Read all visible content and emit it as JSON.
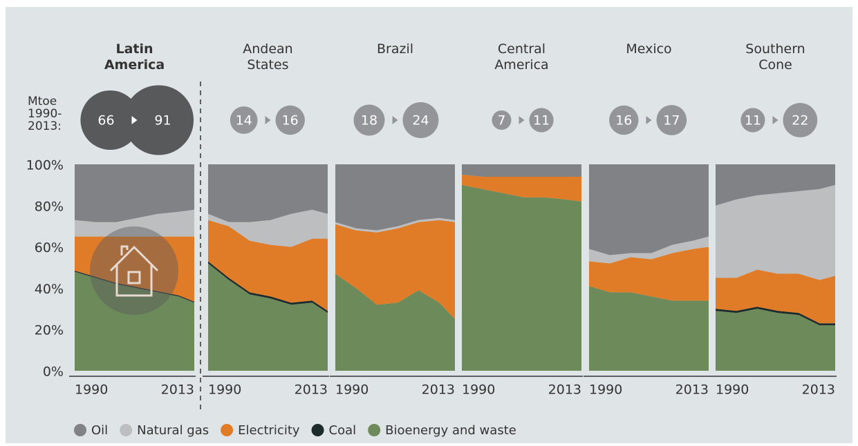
{
  "mtoe_label": "Mtoe 1990-2013:",
  "chart_data": [
    {
      "type": "area",
      "title": "Latin America",
      "mtoe_start": 66,
      "mtoe_end": 91,
      "x": [
        1990,
        1994,
        1998,
        2002,
        2006,
        2010,
        2013
      ],
      "xlim": [
        1990,
        2013
      ],
      "xticks": [
        1990,
        2013
      ],
      "ylim": [
        0,
        100
      ],
      "yticks": [
        {
          "value": 0,
          "label": "0%"
        },
        {
          "value": 20,
          "label": "20%"
        },
        {
          "value": 40,
          "label": "40%"
        },
        {
          "value": 60,
          "label": "60%"
        },
        {
          "value": 80,
          "label": "80%"
        },
        {
          "value": 100,
          "label": "100%"
        }
      ],
      "series": [
        {
          "name": "Bioenergy and waste",
          "color": "#6c8a5a",
          "values": [
            48,
            45,
            42,
            40,
            38,
            36,
            33
          ]
        },
        {
          "name": "Coal",
          "color": "#1e2b2b",
          "values": [
            0.5,
            0.5,
            0.5,
            0.5,
            0.5,
            0.5,
            0.5
          ]
        },
        {
          "name": "Electricity",
          "color": "#e07b28",
          "values": [
            16.5,
            19.5,
            22.5,
            24.5,
            26.5,
            28.5,
            31.5
          ]
        },
        {
          "name": "Natural gas",
          "color": "#bcbec0",
          "values": [
            8,
            7,
            7,
            9,
            11,
            12,
            13
          ]
        },
        {
          "name": "Oil",
          "color": "#808285",
          "values": [
            27,
            28,
            28,
            26,
            24,
            23,
            22
          ]
        }
      ]
    },
    {
      "type": "area",
      "title": "Andean States",
      "mtoe_start": 14,
      "mtoe_end": 16,
      "x": [
        1990,
        1994,
        1998,
        2002,
        2006,
        2010,
        2013
      ],
      "xlim": [
        1990,
        2013
      ],
      "xticks": [
        1990,
        2013
      ],
      "ylim": [
        0,
        100
      ],
      "series": [
        {
          "name": "Bioenergy and waste",
          "color": "#6c8a5a",
          "values": [
            52,
            44,
            37,
            35,
            32,
            33,
            28
          ]
        },
        {
          "name": "Coal",
          "color": "#1e2b2b",
          "values": [
            1,
            1,
            1,
            1,
            1,
            1,
            1
          ]
        },
        {
          "name": "Electricity",
          "color": "#e07b28",
          "values": [
            20,
            25,
            25,
            25,
            27,
            30,
            35
          ]
        },
        {
          "name": "Natural gas",
          "color": "#bcbec0",
          "values": [
            3,
            2,
            9,
            12,
            16,
            14,
            12
          ]
        },
        {
          "name": "Oil",
          "color": "#808285",
          "values": [
            24,
            28,
            28,
            27,
            24,
            22,
            24
          ]
        }
      ]
    },
    {
      "type": "area",
      "title": "Brazil",
      "mtoe_start": 18,
      "mtoe_end": 24,
      "x": [
        1990,
        1994,
        1998,
        2002,
        2006,
        2010,
        2013
      ],
      "xlim": [
        1990,
        2013
      ],
      "xticks": [
        1990,
        2013
      ],
      "ylim": [
        0,
        100
      ],
      "series": [
        {
          "name": "Bioenergy and waste",
          "color": "#6c8a5a",
          "values": [
            47,
            40,
            32,
            33,
            39,
            33,
            25
          ]
        },
        {
          "name": "Coal",
          "color": "#1e2b2b",
          "values": [
            0,
            0,
            0,
            0,
            0,
            0,
            0
          ]
        },
        {
          "name": "Electricity",
          "color": "#e07b28",
          "values": [
            24,
            28,
            35,
            36,
            33,
            40,
            47
          ]
        },
        {
          "name": "Natural gas",
          "color": "#bcbec0",
          "values": [
            1,
            1,
            1,
            1,
            1,
            1,
            1
          ]
        },
        {
          "name": "Oil",
          "color": "#808285",
          "values": [
            28,
            31,
            32,
            30,
            27,
            26,
            27
          ]
        }
      ]
    },
    {
      "type": "area",
      "title": "Central America",
      "mtoe_start": 7,
      "mtoe_end": 11,
      "x": [
        1990,
        1994,
        1998,
        2002,
        2006,
        2010,
        2013
      ],
      "xlim": [
        1990,
        2013
      ],
      "xticks": [
        1990,
        2013
      ],
      "ylim": [
        0,
        100
      ],
      "series": [
        {
          "name": "Bioenergy and waste",
          "color": "#6c8a5a",
          "values": [
            90,
            88,
            86,
            84,
            84,
            83,
            82
          ]
        },
        {
          "name": "Coal",
          "color": "#1e2b2b",
          "values": [
            0,
            0,
            0,
            0,
            0,
            0,
            0
          ]
        },
        {
          "name": "Electricity",
          "color": "#e07b28",
          "values": [
            5,
            6,
            8,
            10,
            10,
            11,
            12
          ]
        },
        {
          "name": "Natural gas",
          "color": "#bcbec0",
          "values": [
            0,
            0,
            0,
            0,
            0,
            0,
            0
          ]
        },
        {
          "name": "Oil",
          "color": "#808285",
          "values": [
            5,
            6,
            6,
            6,
            6,
            6,
            6
          ]
        }
      ]
    },
    {
      "type": "area",
      "title": "Mexico",
      "mtoe_start": 16,
      "mtoe_end": 17,
      "x": [
        1990,
        1994,
        1998,
        2002,
        2006,
        2010,
        2013
      ],
      "xlim": [
        1990,
        2013
      ],
      "xticks": [
        1990,
        2013
      ],
      "ylim": [
        0,
        100
      ],
      "series": [
        {
          "name": "Bioenergy and waste",
          "color": "#6c8a5a",
          "values": [
            41,
            38,
            38,
            36,
            34,
            34,
            34
          ]
        },
        {
          "name": "Coal",
          "color": "#1e2b2b",
          "values": [
            0,
            0,
            0,
            0,
            0,
            0,
            0
          ]
        },
        {
          "name": "Electricity",
          "color": "#e07b28",
          "values": [
            12,
            14,
            17,
            18,
            23,
            25,
            26
          ]
        },
        {
          "name": "Natural gas",
          "color": "#bcbec0",
          "values": [
            6,
            4,
            2,
            3,
            4,
            4,
            5
          ]
        },
        {
          "name": "Oil",
          "color": "#808285",
          "values": [
            41,
            44,
            43,
            43,
            39,
            37,
            35
          ]
        }
      ]
    },
    {
      "type": "area",
      "title": "Southern Cone",
      "mtoe_start": 11,
      "mtoe_end": 22,
      "x": [
        1990,
        1994,
        1998,
        2002,
        2006,
        2010,
        2013
      ],
      "xlim": [
        1990,
        2013
      ],
      "xticks": [
        1990,
        2013
      ],
      "ylim": [
        0,
        100
      ],
      "series": [
        {
          "name": "Bioenergy and waste",
          "color": "#6c8a5a",
          "values": [
            29,
            28,
            30,
            28,
            27,
            22,
            22
          ]
        },
        {
          "name": "Coal",
          "color": "#1e2b2b",
          "values": [
            1,
            1,
            1,
            1,
            1,
            1,
            1
          ]
        },
        {
          "name": "Electricity",
          "color": "#e07b28",
          "values": [
            15,
            16,
            18,
            18,
            19,
            21,
            23
          ]
        },
        {
          "name": "Natural gas",
          "color": "#bcbec0",
          "values": [
            35,
            38,
            36,
            39,
            40,
            44,
            44
          ]
        },
        {
          "name": "Oil",
          "color": "#808285",
          "values": [
            20,
            17,
            15,
            14,
            13,
            12,
            10
          ]
        }
      ]
    }
  ]
}
